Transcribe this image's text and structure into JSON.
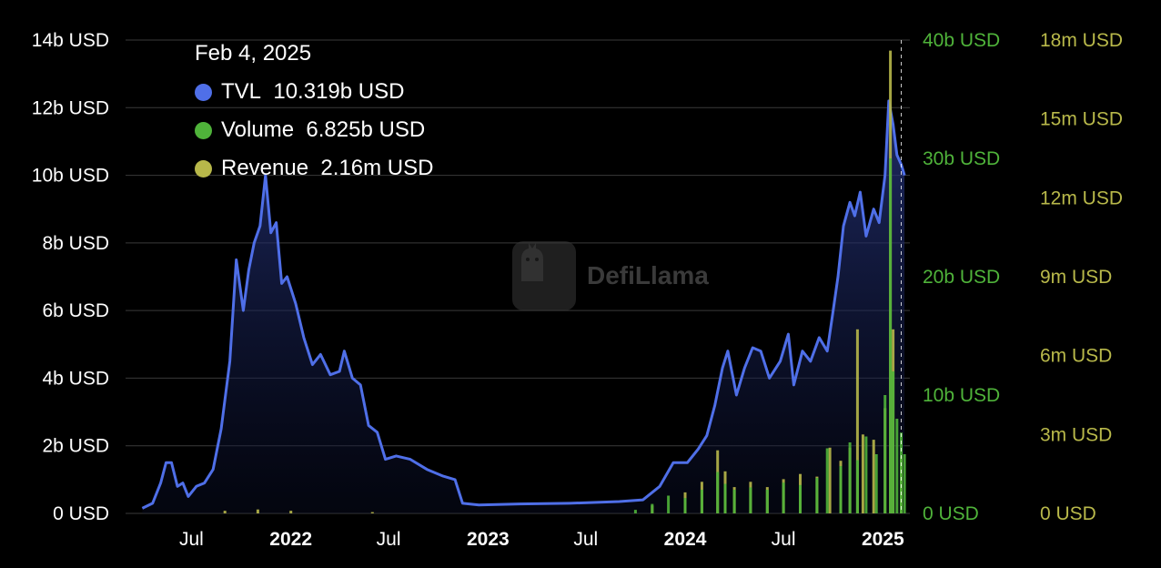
{
  "tooltip": {
    "date": "Feb 4, 2025",
    "rows": [
      {
        "label": "TVL",
        "value": "10.319b USD",
        "color": "#4f6fe8"
      },
      {
        "label": "Volume",
        "value": "6.825b USD",
        "color": "#4fb33a"
      },
      {
        "label": "Revenue",
        "value": "2.16m USD",
        "color": "#b8b84a"
      }
    ]
  },
  "watermark": {
    "text": "DefiLlama",
    "icon": "llama-icon"
  },
  "colors": {
    "tvl": "#4f6fe8",
    "volume": "#4fb33a",
    "revenue": "#b8b84a",
    "grid": "#3a3a3a",
    "axis_text": "#ffffff"
  },
  "chart_data": {
    "type": "line",
    "title": "",
    "x_ticks": [
      {
        "label": "Jul",
        "date": "2021-07-01",
        "bold": false
      },
      {
        "label": "2022",
        "date": "2022-01-01",
        "bold": true
      },
      {
        "label": "Jul",
        "date": "2022-07-01",
        "bold": false
      },
      {
        "label": "2023",
        "date": "2023-01-01",
        "bold": true
      },
      {
        "label": "Jul",
        "date": "2023-07-01",
        "bold": false
      },
      {
        "label": "2024",
        "date": "2024-01-01",
        "bold": true
      },
      {
        "label": "Jul",
        "date": "2024-07-01",
        "bold": false
      },
      {
        "label": "2025",
        "date": "2025-01-01",
        "bold": true
      }
    ],
    "x_range": [
      "2021-03-01",
      "2025-02-20"
    ],
    "y_axes": [
      {
        "name": "tvl",
        "position": "left",
        "range": [
          0,
          14
        ],
        "unit": "b USD",
        "tick_labels": [
          "0 USD",
          "2b USD",
          "4b USD",
          "6b USD",
          "8b USD",
          "10b USD",
          "12b USD",
          "14b USD"
        ],
        "tick_values": [
          0,
          2,
          4,
          6,
          8,
          10,
          12,
          14
        ],
        "color": "#ffffff"
      },
      {
        "name": "volume",
        "position": "right",
        "range": [
          0,
          40
        ],
        "unit": "b USD",
        "tick_labels": [
          "0 USD",
          "10b USD",
          "20b USD",
          "30b USD",
          "40b USD"
        ],
        "tick_values": [
          0,
          10,
          20,
          30,
          40
        ],
        "color": "#4fb33a"
      },
      {
        "name": "revenue",
        "position": "right",
        "range": [
          0,
          18
        ],
        "unit": "m USD",
        "tick_labels": [
          "0 USD",
          "3m USD",
          "6m USD",
          "9m USD",
          "12m USD",
          "15m USD",
          "18m USD"
        ],
        "tick_values": [
          0,
          3,
          6,
          9,
          12,
          15,
          18
        ],
        "color": "#b8b84a"
      }
    ],
    "grid": true,
    "legend": "top-left",
    "crosshair_date": "2025-02-04",
    "series": [
      {
        "name": "TVL",
        "axis": "tvl",
        "kind": "area",
        "points": [
          [
            "2021-04-01",
            0.15
          ],
          [
            "2021-04-20",
            0.3
          ],
          [
            "2021-05-05",
            0.9
          ],
          [
            "2021-05-15",
            1.5
          ],
          [
            "2021-05-25",
            1.5
          ],
          [
            "2021-06-05",
            0.8
          ],
          [
            "2021-06-15",
            0.9
          ],
          [
            "2021-06-25",
            0.5
          ],
          [
            "2021-07-10",
            0.8
          ],
          [
            "2021-07-25",
            0.9
          ],
          [
            "2021-08-10",
            1.3
          ],
          [
            "2021-08-25",
            2.5
          ],
          [
            "2021-09-10",
            4.5
          ],
          [
            "2021-09-22",
            7.5
          ],
          [
            "2021-10-05",
            6.0
          ],
          [
            "2021-10-15",
            7.2
          ],
          [
            "2021-10-25",
            8.0
          ],
          [
            "2021-11-05",
            8.5
          ],
          [
            "2021-11-15",
            10.0
          ],
          [
            "2021-11-25",
            8.3
          ],
          [
            "2021-12-05",
            8.6
          ],
          [
            "2021-12-15",
            6.8
          ],
          [
            "2021-12-25",
            7.0
          ],
          [
            "2022-01-10",
            6.2
          ],
          [
            "2022-01-25",
            5.2
          ],
          [
            "2022-02-10",
            4.4
          ],
          [
            "2022-02-25",
            4.7
          ],
          [
            "2022-03-15",
            4.1
          ],
          [
            "2022-04-01",
            4.2
          ],
          [
            "2022-04-10",
            4.8
          ],
          [
            "2022-04-25",
            4.0
          ],
          [
            "2022-05-10",
            3.8
          ],
          [
            "2022-05-25",
            2.6
          ],
          [
            "2022-06-10",
            2.4
          ],
          [
            "2022-06-25",
            1.6
          ],
          [
            "2022-07-15",
            1.7
          ],
          [
            "2022-08-10",
            1.6
          ],
          [
            "2022-09-10",
            1.3
          ],
          [
            "2022-10-10",
            1.1
          ],
          [
            "2022-11-01",
            1.0
          ],
          [
            "2022-11-15",
            0.3
          ],
          [
            "2022-12-15",
            0.25
          ],
          [
            "2023-03-01",
            0.28
          ],
          [
            "2023-06-01",
            0.3
          ],
          [
            "2023-09-01",
            0.35
          ],
          [
            "2023-10-15",
            0.4
          ],
          [
            "2023-11-15",
            0.8
          ],
          [
            "2023-12-10",
            1.5
          ],
          [
            "2024-01-05",
            1.5
          ],
          [
            "2024-01-25",
            1.9
          ],
          [
            "2024-02-10",
            2.3
          ],
          [
            "2024-02-25",
            3.2
          ],
          [
            "2024-03-10",
            4.3
          ],
          [
            "2024-03-20",
            4.8
          ],
          [
            "2024-04-05",
            3.5
          ],
          [
            "2024-04-20",
            4.3
          ],
          [
            "2024-05-05",
            4.9
          ],
          [
            "2024-05-20",
            4.8
          ],
          [
            "2024-06-05",
            4.0
          ],
          [
            "2024-06-25",
            4.5
          ],
          [
            "2024-07-10",
            5.3
          ],
          [
            "2024-07-20",
            3.8
          ],
          [
            "2024-08-05",
            4.8
          ],
          [
            "2024-08-20",
            4.5
          ],
          [
            "2024-09-05",
            5.2
          ],
          [
            "2024-09-20",
            4.8
          ],
          [
            "2024-10-01",
            6.0
          ],
          [
            "2024-10-10",
            7.0
          ],
          [
            "2024-10-20",
            8.5
          ],
          [
            "2024-11-01",
            9.2
          ],
          [
            "2024-11-10",
            8.8
          ],
          [
            "2024-11-20",
            9.5
          ],
          [
            "2024-12-01",
            8.2
          ],
          [
            "2024-12-15",
            9.0
          ],
          [
            "2024-12-25",
            8.6
          ],
          [
            "2025-01-05",
            10.0
          ],
          [
            "2025-01-12",
            12.2
          ],
          [
            "2025-01-20",
            11.5
          ],
          [
            "2025-01-27",
            10.6
          ],
          [
            "2025-02-04",
            10.319
          ],
          [
            "2025-02-10",
            10.0
          ]
        ]
      },
      {
        "name": "Volume",
        "axis": "volume",
        "kind": "bars",
        "points": [
          [
            "2023-10-01",
            0.3
          ],
          [
            "2023-11-01",
            0.8
          ],
          [
            "2023-12-01",
            1.5
          ],
          [
            "2024-01-01",
            1.3
          ],
          [
            "2024-02-01",
            2.0
          ],
          [
            "2024-03-01",
            3.5
          ],
          [
            "2024-03-15",
            2.5
          ],
          [
            "2024-04-01",
            2.0
          ],
          [
            "2024-05-01",
            2.2
          ],
          [
            "2024-06-01",
            2.0
          ],
          [
            "2024-07-01",
            2.6
          ],
          [
            "2024-08-01",
            2.4
          ],
          [
            "2024-09-01",
            3.0
          ],
          [
            "2024-09-20",
            5.5
          ],
          [
            "2024-10-15",
            4.0
          ],
          [
            "2024-11-01",
            6.0
          ],
          [
            "2024-11-15",
            4.5
          ],
          [
            "2024-12-01",
            6.5
          ],
          [
            "2024-12-20",
            5.0
          ],
          [
            "2025-01-05",
            10.0
          ],
          [
            "2025-01-15",
            30.0
          ],
          [
            "2025-01-20",
            12.0
          ],
          [
            "2025-01-27",
            8.0
          ],
          [
            "2025-02-04",
            6.825
          ],
          [
            "2025-02-10",
            5.0
          ]
        ]
      },
      {
        "name": "Revenue",
        "axis": "revenue",
        "kind": "bars",
        "points": [
          [
            "2021-09-01",
            0.1
          ],
          [
            "2021-11-01",
            0.15
          ],
          [
            "2022-01-01",
            0.1
          ],
          [
            "2022-06-01",
            0.05
          ],
          [
            "2023-11-01",
            0.3
          ],
          [
            "2024-01-01",
            0.8
          ],
          [
            "2024-02-01",
            1.2
          ],
          [
            "2024-03-01",
            2.4
          ],
          [
            "2024-03-15",
            1.6
          ],
          [
            "2024-04-01",
            1.0
          ],
          [
            "2024-05-01",
            1.2
          ],
          [
            "2024-06-01",
            1.0
          ],
          [
            "2024-07-01",
            1.3
          ],
          [
            "2024-08-01",
            1.5
          ],
          [
            "2024-09-01",
            1.4
          ],
          [
            "2024-09-25",
            2.5
          ],
          [
            "2024-10-15",
            2.0
          ],
          [
            "2024-11-01",
            2.5
          ],
          [
            "2024-11-15",
            7.0
          ],
          [
            "2024-11-25",
            3.0
          ],
          [
            "2024-12-15",
            2.8
          ],
          [
            "2025-01-05",
            4.0
          ],
          [
            "2025-01-15",
            17.6
          ],
          [
            "2025-01-20",
            7.0
          ],
          [
            "2025-02-04",
            2.16
          ]
        ]
      }
    ]
  }
}
